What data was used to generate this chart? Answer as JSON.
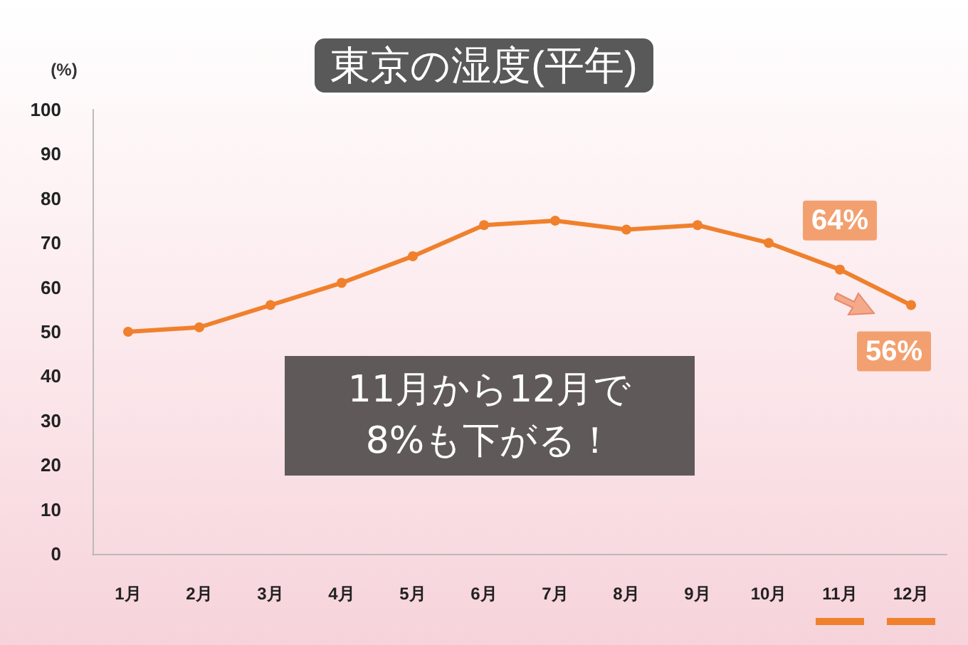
{
  "chart_data": {
    "type": "line",
    "title": "東京の湿度(平年)",
    "ylabel": "(%)",
    "categories": [
      "1月",
      "2月",
      "3月",
      "4月",
      "5月",
      "6月",
      "7月",
      "8月",
      "9月",
      "10月",
      "11月",
      "12月"
    ],
    "series": [
      {
        "color": "#f0802c",
        "values": [
          50,
          51,
          56,
          61,
          67,
          74,
          75,
          73,
          74,
          70,
          64,
          56
        ],
        "value_labels": [
          null,
          null,
          null,
          null,
          null,
          null,
          null,
          null,
          null,
          null,
          "64%",
          "56%"
        ]
      }
    ],
    "ylim": [
      0,
      100
    ],
    "yticks": [
      0,
      10,
      20,
      30,
      40,
      50,
      60,
      70,
      80,
      90,
      100
    ],
    "annotations": [
      "11月から12月で\n8%も下がる！"
    ],
    "grid": false,
    "marker": "circle",
    "line_style": "solid"
  }
}
